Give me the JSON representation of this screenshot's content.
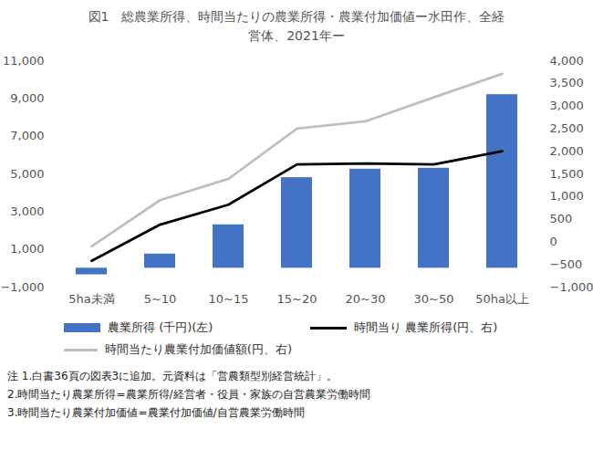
{
  "chart_data": {
    "type": "bar",
    "title": "図1　総農業所得、時間当たりの農業所得・農業付加価値ー水田作、全経営体、2021年ー",
    "categories": [
      "5ha未満",
      "5~10",
      "10~15",
      "15~20",
      "20~30",
      "30~50",
      "50ha以上"
    ],
    "series": [
      {
        "name": "農業所得 (千円)(左)",
        "type": "bar",
        "color": "#4472c4",
        "values": [
          -350,
          750,
          2300,
          4800,
          5250,
          5300,
          9200
        ]
      },
      {
        "name": "時間当り 農業所得(円、右)",
        "type": "line",
        "color": "#000000",
        "axis": "y2",
        "values": [
          -420,
          380,
          820,
          1710,
          1730,
          1710,
          2000
        ]
      },
      {
        "name": "時間当たり農業付加価値額(円、右)",
        "type": "line",
        "color": "#bfbfbf",
        "axis": "y2",
        "values": [
          -100,
          920,
          1390,
          2500,
          2660,
          3190,
          3710
        ]
      }
    ],
    "ylim": [
      -1000,
      11000
    ],
    "yticks": [
      -1000,
      1000,
      3000,
      5000,
      7000,
      9000,
      11000
    ],
    "y2lim": [
      -1000,
      4000
    ],
    "y2ticks": [
      -1000,
      -500,
      0,
      500,
      1000,
      1500,
      2000,
      2500,
      3000,
      3500,
      4000
    ],
    "grid": false,
    "legend": "bottom",
    "notes": [
      "注 1.白書36頁の図表3に追加。元資料は「営農類型別経営統計」。",
      "2.時間当たり農業所得=農業所得/経営者・役員・家族の自営農業労働時間",
      "3.時間当たり農業付加価値=農業付加価値/自営農業労働時間"
    ]
  }
}
